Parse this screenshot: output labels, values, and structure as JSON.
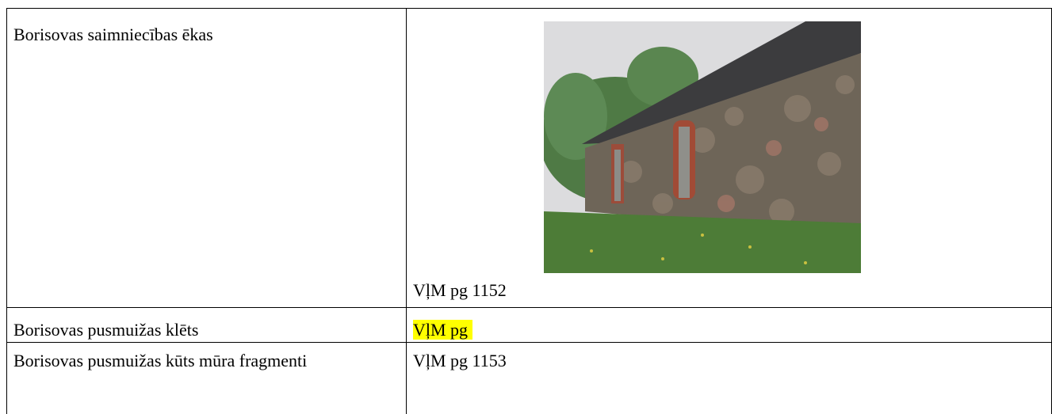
{
  "table": {
    "rows": [
      [
        "Borisovas saimniecības ēkas",
        "VļM pg 1152"
      ],
      [
        "Borisovas pusmuižas klēts",
        "VļM pg"
      ],
      [
        "Borisovas pusmuižas kūts mūra fragmenti",
        "VļM pg 1153"
      ]
    ]
  }
}
